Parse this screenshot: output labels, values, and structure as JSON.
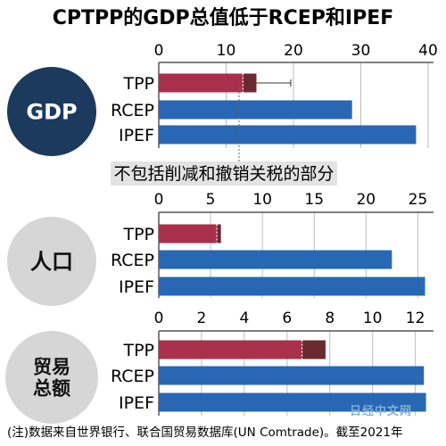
{
  "title": "CPTPP的GDP总值低于RCEP和IPEF",
  "note": "(注)数据来自世界银行、联合国贸易数据库(UN Comtrade)。截至2021年",
  "watermark": "日经中文网",
  "colors": {
    "tpp": "#a8304a",
    "tpp_extra": "#6b2a30",
    "blue": "#2867b3",
    "badge_dark": "#1b3a5e",
    "badge_light": "#d6d6d6"
  },
  "chart_data": [
    {
      "type": "bar",
      "orientation": "horizontal",
      "badge": "GDP",
      "categories": [
        "TPP",
        "RCEP",
        "IPEF"
      ],
      "series": [
        {
          "values": [
            14.5,
            28.7,
            38.2
          ]
        }
      ],
      "tpp_base": 12.5,
      "ticks": [
        "0",
        "10",
        "20",
        "30",
        "40"
      ],
      "xlim": [
        0,
        40
      ],
      "error_bar_to": 19.6,
      "annotation": "不包括削减和撤销关税的部分"
    },
    {
      "type": "bar",
      "orientation": "horizontal",
      "badge": "人口",
      "categories": [
        "TPP",
        "RCEP",
        "IPEF"
      ],
      "series": [
        {
          "values": [
            6.0,
            22.5,
            25.7
          ]
        }
      ],
      "tpp_base": 5.6,
      "ticks": [
        "0",
        "5",
        "10",
        "15",
        "20",
        "25"
      ],
      "xlim": [
        0,
        26
      ]
    },
    {
      "type": "bar",
      "orientation": "horizontal",
      "badge": "贸易\n总额",
      "categories": [
        "TPP",
        "RCEP",
        "IPEF"
      ],
      "series": [
        {
          "values": [
            7.8,
            12.4,
            12.5
          ]
        }
      ],
      "tpp_base": 6.7,
      "ticks": [
        "0",
        "2",
        "4",
        "6",
        "8",
        "10",
        "12"
      ],
      "xlim": [
        0,
        12.6
      ]
    }
  ]
}
